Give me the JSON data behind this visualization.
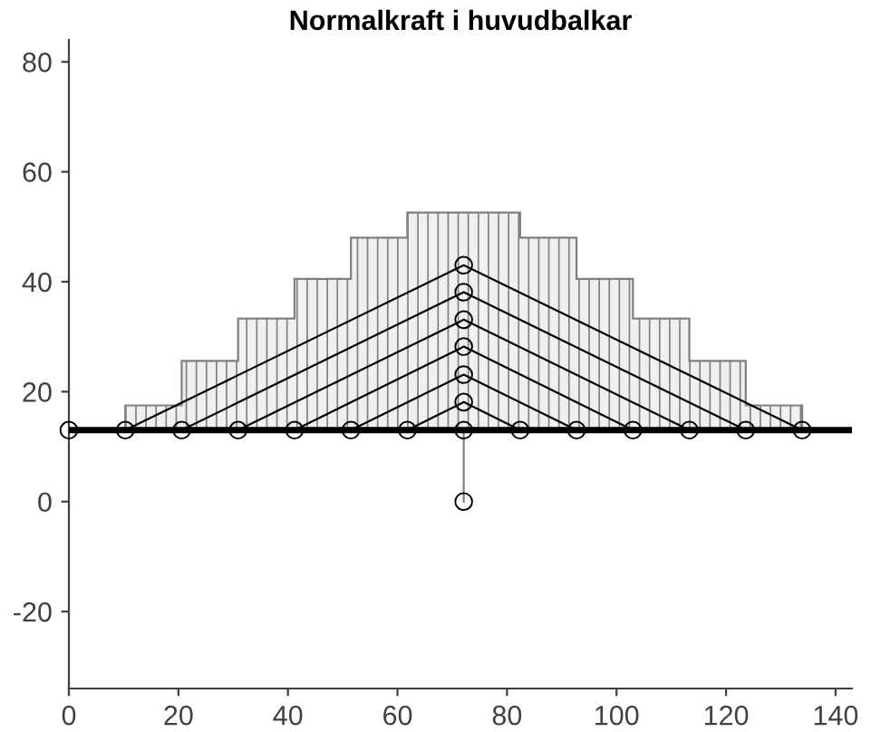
{
  "chart_data": {
    "type": "line",
    "title": "Normalkraft i huvudbalkar",
    "xlim": [
      0,
      143
    ],
    "ylim": [
      -34,
      84
    ],
    "xticks": [
      0,
      20,
      40,
      60,
      80,
      100,
      120,
      140
    ],
    "yticks": [
      -20,
      0,
      20,
      40,
      60,
      80
    ],
    "grid": false,
    "legend": false,
    "series": [
      {
        "type": "area",
        "color": "#808080",
        "x": [
          10.3,
          10.3,
          20.6,
          20.6,
          30.9,
          30.9,
          41.2,
          41.2,
          51.5,
          51.5,
          61.8,
          61.8,
          82.4,
          82.4,
          92.7,
          92.7,
          103,
          103,
          113.3,
          113.3,
          123.6,
          123.6,
          133.9,
          133.9
        ],
        "values": [
          13,
          17.5,
          17.5,
          25.6,
          25.6,
          33.3,
          33.3,
          40.5,
          40.5,
          48,
          48,
          52.6,
          52.6,
          48,
          48,
          40.5,
          40.5,
          33.3,
          33.3,
          25.6,
          25.6,
          17.5,
          17.5,
          13
        ]
      },
      {
        "color": "#000000",
        "x": [
          10.3,
          72.1,
          133.9
        ],
        "values": [
          13,
          43,
          13
        ]
      },
      {
        "color": "#000000",
        "x": [
          20.6,
          72.1,
          123.6
        ],
        "values": [
          13,
          38.1,
          13
        ]
      },
      {
        "color": "#000000",
        "x": [
          30.9,
          72.1,
          113.3
        ],
        "values": [
          13,
          33.1,
          13
        ]
      },
      {
        "color": "#000000",
        "x": [
          41.2,
          72.1,
          103
        ],
        "values": [
          13,
          28.2,
          13
        ]
      },
      {
        "color": "#000000",
        "x": [
          51.5,
          72.1,
          92.7
        ],
        "values": [
          13,
          23.1,
          13
        ]
      },
      {
        "color": "#000000",
        "x": [
          61.8,
          72.1,
          82.4
        ],
        "values": [
          13,
          18.1,
          13
        ]
      },
      {
        "color": "#808080",
        "x": [
          72.1,
          72.1
        ],
        "values": [
          13,
          0
        ]
      },
      {
        "color": "#000000",
        "x": [
          0,
          143
        ],
        "values": [
          13,
          13
        ]
      },
      {
        "type": "scatter",
        "color": "#000000",
        "marker": "circle",
        "x": [
          0,
          10.3,
          20.6,
          30.9,
          41.2,
          51.5,
          61.8,
          72.1,
          82.4,
          92.7,
          103,
          113.3,
          123.6,
          133.9,
          72.1,
          72.1,
          72.1,
          72.1,
          72.1,
          72.1,
          72.1
        ],
        "values": [
          13,
          13,
          13,
          13,
          13,
          13,
          13,
          13,
          13,
          13,
          13,
          13,
          13,
          13,
          43,
          38.1,
          33.1,
          28.2,
          23.1,
          18.1,
          0
        ]
      }
    ]
  }
}
